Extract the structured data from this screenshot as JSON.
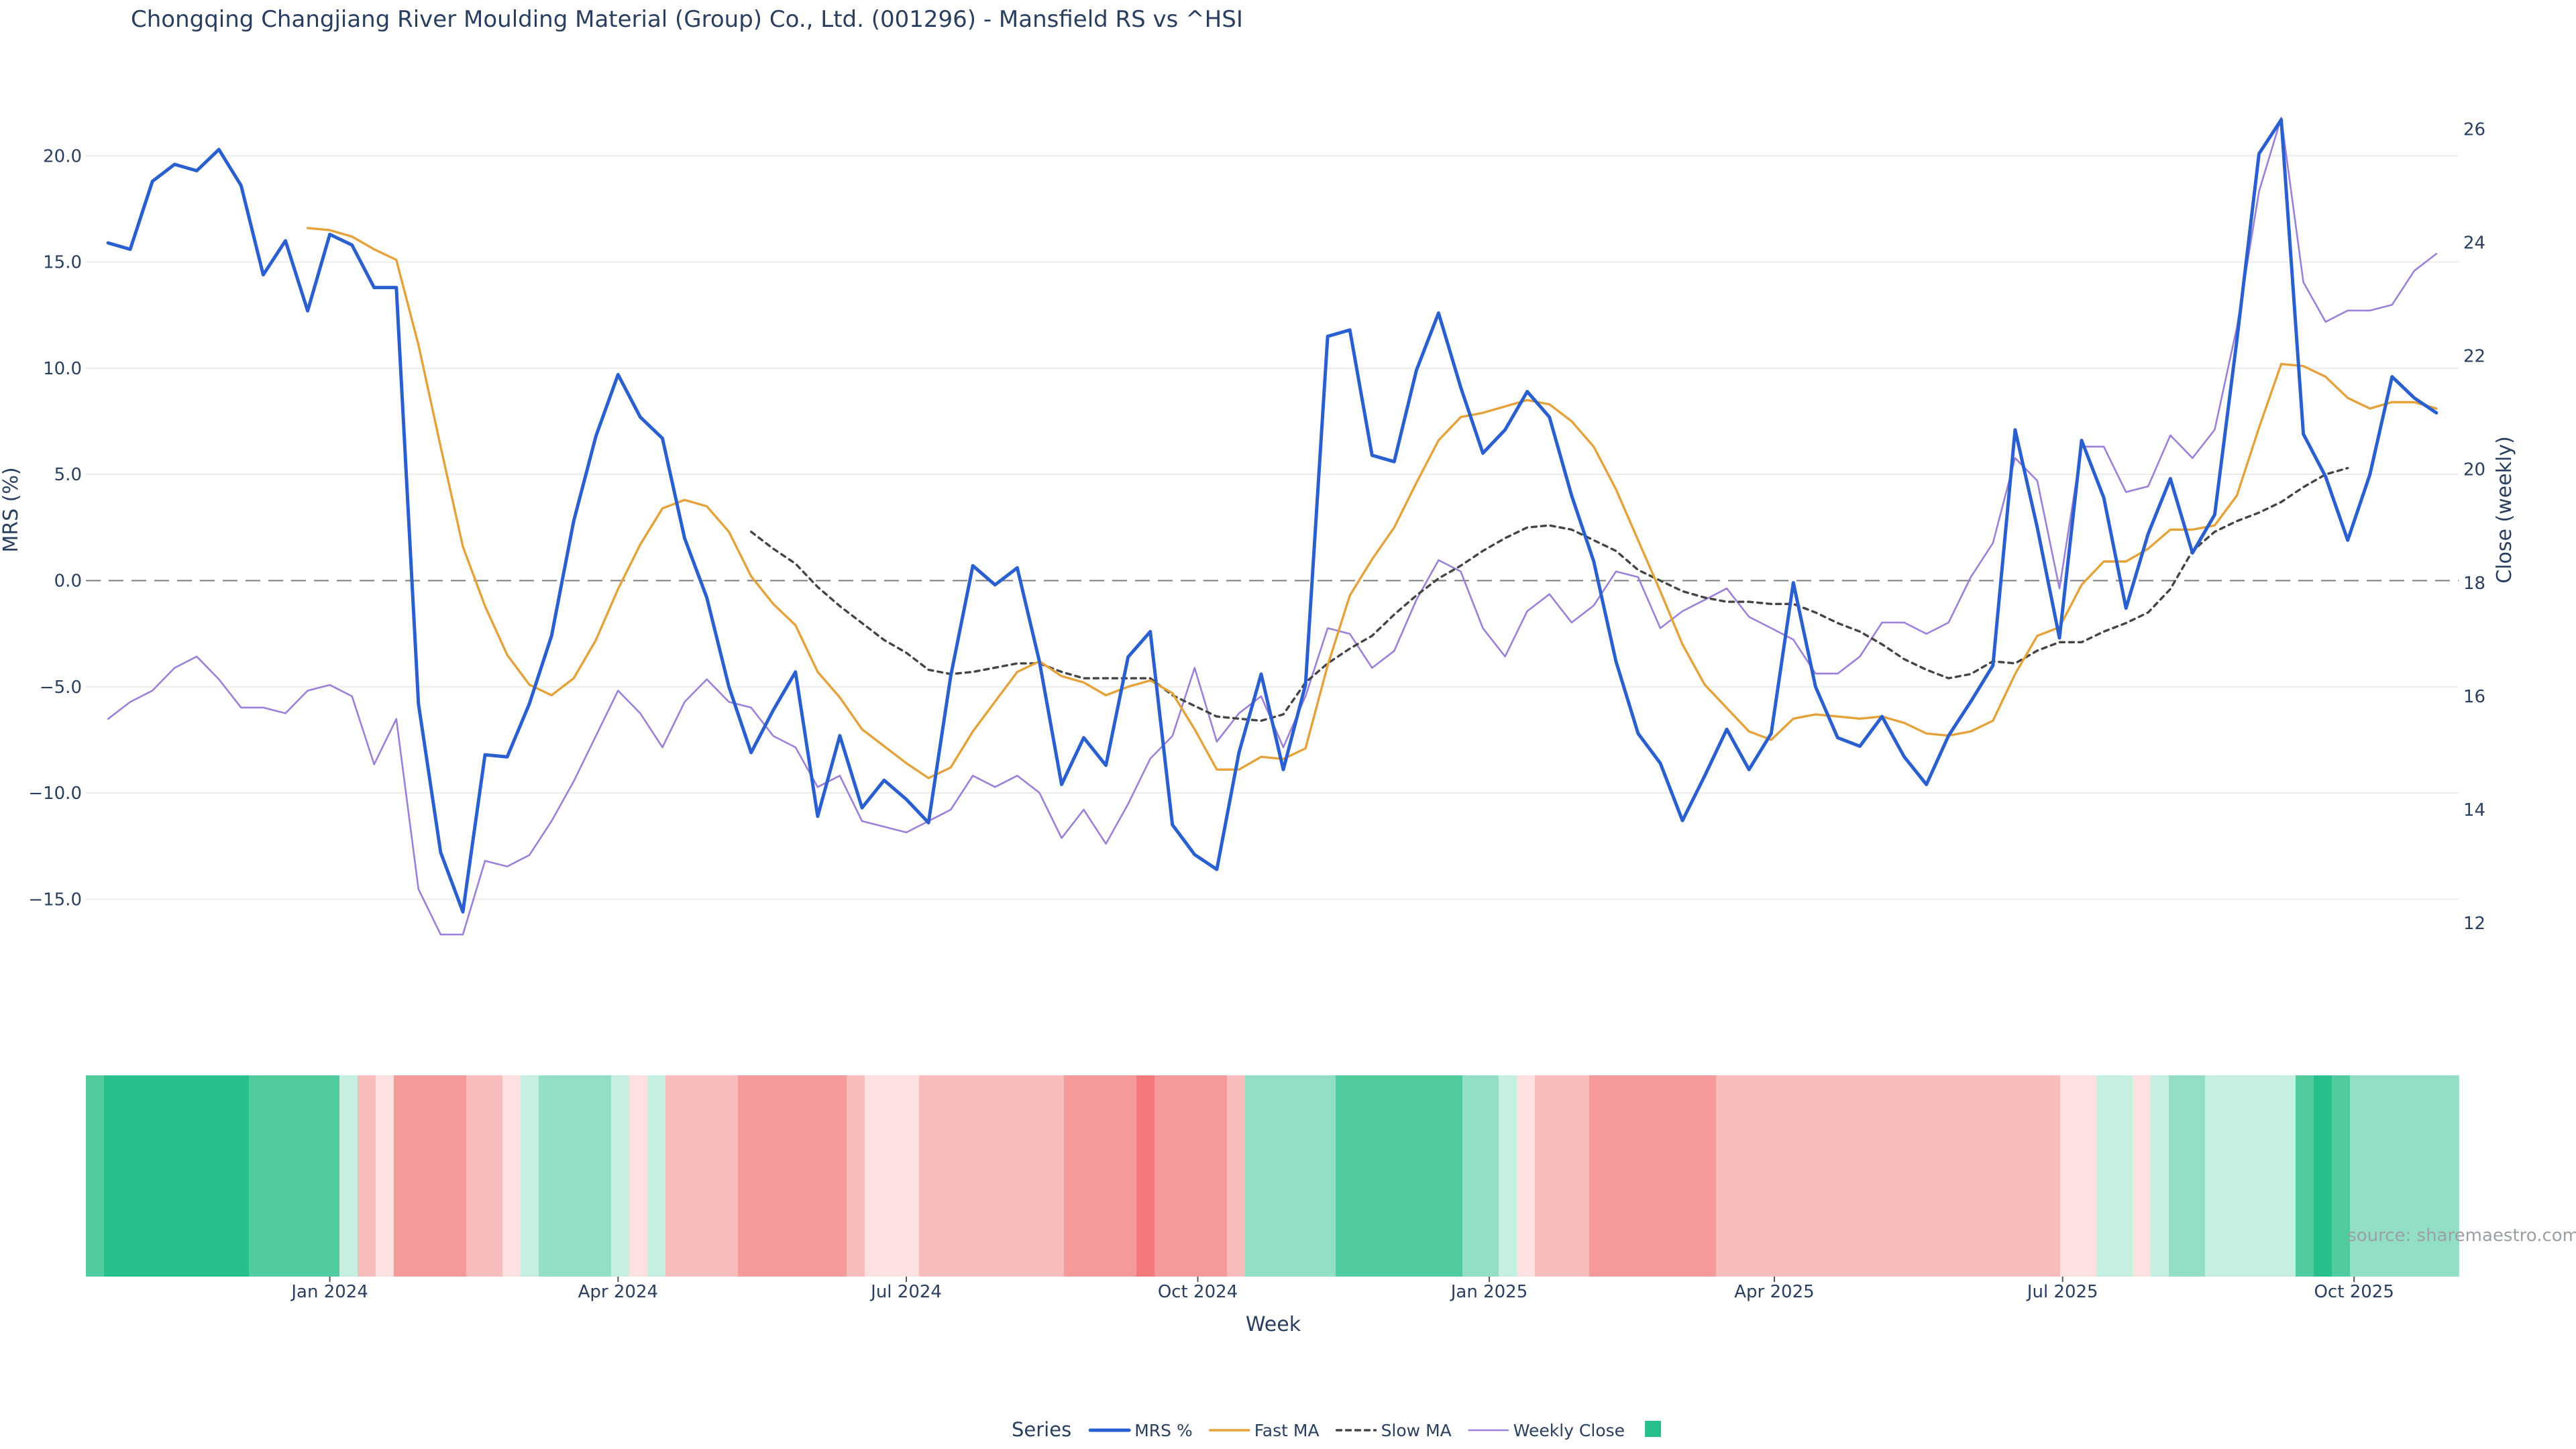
{
  "chart_data": {
    "type": "line",
    "title": "Chongqing Changjiang River Moulding Material (Group) Co., Ltd. (001296) - Mansfield RS vs ^HSI",
    "xlabel": "Week",
    "ylabel_left": "MRS (%)",
    "ylabel_right": "Close (weekly)",
    "x_ticks": [
      {
        "date": "2024-01-01",
        "label": "Jan 2024"
      },
      {
        "date": "2024-04-01",
        "label": "Apr 2024"
      },
      {
        "date": "2024-07-01",
        "label": "Jul 2024"
      },
      {
        "date": "2024-10-01",
        "label": "Oct 2024"
      },
      {
        "date": "2025-01-01",
        "label": "Jan 2025"
      },
      {
        "date": "2025-04-01",
        "label": "Apr 2025"
      },
      {
        "date": "2025-07-01",
        "label": "Jul 2025"
      },
      {
        "date": "2025-10-01",
        "label": "Oct 2025"
      }
    ],
    "x_range": [
      "2023-10-16",
      "2025-11-03"
    ],
    "first_week": "2023-10-23",
    "y_left": {
      "range": [
        -17.2,
        22.6
      ],
      "ticks": [
        20,
        15,
        10,
        5,
        0,
        -5,
        -10,
        -15
      ],
      "tick_labels": [
        "20.0",
        "15.0",
        "10.0",
        "5.0",
        "0.0",
        "−5.0",
        "−10.0",
        "−15.0"
      ]
    },
    "y_right": {
      "range": [
        11.6,
        26.5
      ],
      "ticks": [
        12,
        14,
        16,
        18,
        20,
        22,
        24,
        26
      ],
      "tick_labels": [
        "12",
        "14",
        "16",
        "18",
        "20",
        "22",
        "24",
        "26"
      ]
    },
    "grid": true,
    "zero_line": "dashed",
    "series": [
      {
        "name": "MRS %",
        "axis": "left",
        "color": "#2a5fcf",
        "dash": "solid",
        "start": 0,
        "values": [
          15.9,
          15.6,
          18.8,
          19.6,
          19.3,
          20.3,
          18.6,
          14.4,
          16.0,
          12.7,
          16.3,
          15.8,
          13.8,
          13.8,
          -5.8,
          -12.8,
          -15.6,
          -8.2,
          -8.3,
          -5.8,
          -2.6,
          2.8,
          6.8,
          9.7,
          7.7,
          6.7,
          2.0,
          -0.8,
          -5.0,
          -8.1,
          -6.1,
          -4.3,
          -11.1,
          -7.3,
          -10.7,
          -9.4,
          -10.3,
          -11.4,
          -4.5,
          0.7,
          -0.2,
          0.6,
          -3.8,
          -9.6,
          -7.4,
          -8.7,
          -3.6,
          -2.4,
          -11.5,
          -12.9,
          -13.6,
          -8.1,
          -4.4,
          -8.9,
          -4.9,
          11.5,
          11.8,
          5.9,
          5.6,
          9.9,
          12.6,
          9.1,
          6.0,
          7.1,
          8.9,
          7.7,
          4.0,
          0.9,
          -3.8,
          -7.2,
          -8.6,
          -11.3,
          -9.2,
          -7.0,
          -8.9,
          -7.2,
          -0.1,
          -5.0,
          -7.4,
          -7.8,
          -6.4,
          -8.3,
          -9.6,
          -7.3,
          -5.7,
          -4.0,
          7.1,
          2.5,
          -2.7,
          6.6,
          3.9,
          -1.3,
          2.2,
          4.8,
          1.3,
          3.1,
          11.3,
          20.1,
          21.7,
          6.9,
          4.9,
          1.9,
          5.0,
          9.6,
          8.6,
          7.9
        ]
      },
      {
        "name": "Fast MA",
        "axis": "left",
        "color": "#e5a23a",
        "dash": "solid",
        "start": 9,
        "values": [
          16.6,
          16.5,
          16.2,
          15.6,
          15.1,
          11.1,
          6.3,
          1.6,
          -1.2,
          -3.5,
          -4.9,
          -5.4,
          -4.6,
          -2.8,
          -0.4,
          1.7,
          3.4,
          3.8,
          3.5,
          2.3,
          0.2,
          -1.1,
          -2.1,
          -4.3,
          -5.5,
          -7.0,
          -7.8,
          -8.6,
          -9.3,
          -8.8,
          -7.1,
          -5.7,
          -4.3,
          -3.8,
          -4.5,
          -4.8,
          -5.4,
          -5.0,
          -4.7,
          -5.3,
          -7.0,
          -8.9,
          -8.9,
          -8.3,
          -8.4,
          -7.9,
          -4.0,
          -0.7,
          1.0,
          2.5,
          4.6,
          6.6,
          7.7,
          7.9,
          8.2,
          8.5,
          8.3,
          7.5,
          6.3,
          4.3,
          1.9,
          -0.5,
          -3.0,
          -4.9,
          -6.0,
          -7.1,
          -7.5,
          -6.5,
          -6.3,
          -6.4,
          -6.5,
          -6.4,
          -6.7,
          -7.2,
          -7.3,
          -7.1,
          -6.6,
          -4.4,
          -2.6,
          -2.2,
          -0.2,
          0.9,
          0.9,
          1.5,
          2.4,
          2.4,
          2.6,
          4.0,
          7.2,
          10.2,
          10.1,
          9.6,
          8.6,
          8.1,
          8.4,
          8.4,
          8.1
        ]
      },
      {
        "name": "Slow MA",
        "axis": "left",
        "color": "#444444",
        "dash": "dotted",
        "start": 29,
        "values": [
          2.3,
          1.5,
          0.8,
          -0.3,
          -1.2,
          -2.0,
          -2.8,
          -3.4,
          -4.2,
          -4.4,
          -4.3,
          -4.1,
          -3.9,
          -3.9,
          -4.3,
          -4.6,
          -4.6,
          -4.6,
          -4.6,
          -5.4,
          -5.9,
          -6.4,
          -6.5,
          -6.6,
          -6.3,
          -4.8,
          -3.9,
          -3.2,
          -2.6,
          -1.6,
          -0.7,
          0.1,
          0.7,
          1.4,
          2.0,
          2.5,
          2.6,
          2.4,
          1.9,
          1.4,
          0.5,
          0.0,
          -0.5,
          -0.8,
          -1.0,
          -1.0,
          -1.1,
          -1.1,
          -1.5,
          -2.0,
          -2.4,
          -3.0,
          -3.7,
          -4.2,
          -4.6,
          -4.4,
          -3.8,
          -3.9,
          -3.3,
          -2.9,
          -2.9,
          -2.4,
          -2.0,
          -1.5,
          -0.4,
          1.4,
          2.3,
          2.8,
          3.2,
          3.7,
          4.4,
          5.0,
          5.3
        ]
      },
      {
        "name": "Weekly Close",
        "axis": "right",
        "color": "#9b7fd9",
        "dash": "solid",
        "start": 0,
        "values": [
          15.6,
          15.9,
          16.1,
          16.5,
          16.7,
          16.3,
          15.8,
          15.8,
          15.7,
          16.1,
          16.2,
          16.0,
          14.8,
          15.6,
          12.6,
          11.8,
          11.8,
          13.1,
          13.0,
          13.2,
          13.8,
          14.5,
          15.3,
          16.1,
          15.7,
          15.1,
          15.9,
          16.3,
          15.9,
          15.8,
          15.3,
          15.1,
          14.4,
          14.6,
          13.8,
          13.7,
          13.6,
          13.8,
          14.0,
          14.6,
          14.4,
          14.6,
          14.3,
          13.5,
          14.0,
          13.4,
          14.1,
          14.9,
          15.3,
          16.5,
          15.2,
          15.7,
          16.0,
          15.1,
          16.0,
          17.2,
          17.1,
          16.5,
          16.8,
          17.7,
          18.4,
          18.2,
          17.2,
          16.7,
          17.5,
          17.8,
          17.3,
          17.6,
          18.2,
          18.1,
          17.2,
          17.5,
          17.7,
          17.9,
          17.4,
          17.2,
          17.0,
          16.4,
          16.4,
          16.7,
          17.3,
          17.3,
          17.1,
          17.3,
          18.1,
          18.7,
          20.2,
          19.8,
          17.9,
          20.4,
          20.4,
          19.6,
          19.7,
          20.6,
          20.2,
          20.7,
          22.5,
          24.9,
          26.2,
          23.3,
          22.6,
          22.8,
          22.8,
          22.9,
          23.5,
          23.8
        ]
      }
    ],
    "heatmap": {
      "start": 0,
      "values": [
        3,
        4,
        4,
        4,
        4,
        4,
        4,
        4,
        4,
        3,
        3,
        3,
        3,
        3,
        1,
        -1,
        0,
        -2,
        -2,
        -2,
        -2,
        -1,
        -1,
        0,
        1,
        2,
        2,
        2,
        2,
        1,
        0,
        1,
        -1,
        -1,
        -1,
        -1,
        -2,
        -2,
        -2,
        -2,
        -2,
        -2,
        -1,
        0,
        0,
        0,
        -1,
        -1,
        -1,
        -1,
        -1,
        -1,
        -1,
        -1,
        -2,
        -2,
        -2,
        -2,
        -3,
        -2,
        -2,
        -2,
        -2,
        -1,
        2,
        2,
        2,
        2,
        2,
        3,
        3,
        3,
        3,
        3,
        3,
        3,
        2,
        2,
        1,
        0,
        -1,
        -1,
        -1,
        -2,
        -2,
        -2,
        -2,
        -2,
        -2,
        -2,
        -1,
        -1,
        -1,
        -1,
        -1,
        -1,
        -1,
        -1,
        -1,
        -1,
        -1,
        -1,
        -1,
        -1,
        -1,
        -1,
        -1,
        -1,
        -1,
        0,
        0,
        1,
        1,
        0,
        1,
        2,
        2,
        1,
        1,
        1,
        1,
        1,
        3,
        4,
        3,
        2,
        2,
        2,
        2,
        2,
        2
      ],
      "colors": {
        "-3": "#f2787a",
        "-2": "#f49a9b",
        "-1": "#f8bcbd",
        "0": "#fde0e0",
        "1": "#c6efe2",
        "2": "#93dfc6",
        "3": "#51cc9e",
        "4": "#27c08b"
      }
    },
    "legend": {
      "title": "Series",
      "placement": "bottom-center",
      "items": [
        "MRS %",
        "Fast MA",
        "Slow MA",
        "Weekly Close",
        ""
      ],
      "swatch_color": "#27bf8c"
    },
    "source": "source: sharemaestro.com"
  }
}
